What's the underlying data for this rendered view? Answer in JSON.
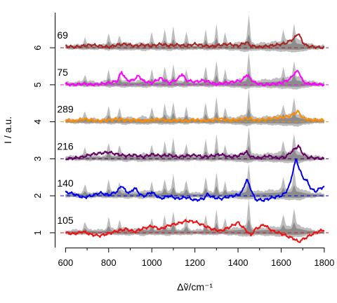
{
  "chart_data": {
    "type": "line",
    "xlabel": "Δṽ/cm⁻¹",
    "ylabel": "I / a.u.",
    "xlim": [
      550,
      1820
    ],
    "ylim": [
      0.6,
      6.95
    ],
    "x_ticks": [
      600,
      800,
      1000,
      1200,
      1400,
      1600,
      1800
    ],
    "x_minor_ticks": [
      700,
      900,
      1100,
      1300,
      1500,
      1700
    ],
    "y_ticks": [
      1,
      2,
      3,
      4,
      5,
      6
    ],
    "x_range": [
      600,
      1800
    ],
    "grid": false,
    "legend": "none",
    "reference_color": "#999999",
    "series": [
      {
        "label": "105",
        "offset": 1,
        "color": "#ee1111",
        "points": [
          [
            600,
            1.0
          ],
          [
            640,
            0.97
          ],
          [
            680,
            1.03
          ],
          [
            720,
            0.95
          ],
          [
            760,
            0.92
          ],
          [
            800,
            0.98
          ],
          [
            840,
            1.05
          ],
          [
            880,
            1.1
          ],
          [
            920,
            1.03
          ],
          [
            960,
            1.12
          ],
          [
            1000,
            1.18
          ],
          [
            1040,
            1.1
          ],
          [
            1080,
            1.2
          ],
          [
            1120,
            1.25
          ],
          [
            1160,
            1.32
          ],
          [
            1200,
            1.3
          ],
          [
            1240,
            1.2
          ],
          [
            1280,
            1.1
          ],
          [
            1320,
            1.05
          ],
          [
            1360,
            1.15
          ],
          [
            1400,
            1.28
          ],
          [
            1440,
            1.05
          ],
          [
            1460,
            0.93
          ],
          [
            1480,
            1.1
          ],
          [
            1520,
            1.22
          ],
          [
            1560,
            1.05
          ],
          [
            1600,
            0.98
          ],
          [
            1640,
            0.88
          ],
          [
            1660,
            0.84
          ],
          [
            1680,
            0.75
          ],
          [
            1700,
            0.82
          ],
          [
            1740,
            0.95
          ],
          [
            1780,
            1.05
          ],
          [
            1800,
            1.08
          ]
        ]
      },
      {
        "label": "140",
        "offset": 2,
        "color": "#0000ee",
        "points": [
          [
            600,
            2.1
          ],
          [
            640,
            2.05
          ],
          [
            680,
            1.95
          ],
          [
            720,
            2.0
          ],
          [
            760,
            2.08
          ],
          [
            800,
            2.02
          ],
          [
            840,
            2.12
          ],
          [
            860,
            2.28
          ],
          [
            880,
            2.12
          ],
          [
            900,
            2.08
          ],
          [
            920,
            2.22
          ],
          [
            940,
            2.08
          ],
          [
            960,
            1.98
          ],
          [
            1000,
            2.1
          ],
          [
            1040,
            1.92
          ],
          [
            1080,
            2.0
          ],
          [
            1120,
            1.92
          ],
          [
            1160,
            1.96
          ],
          [
            1200,
            1.88
          ],
          [
            1240,
            1.92
          ],
          [
            1260,
            2.05
          ],
          [
            1280,
            1.96
          ],
          [
            1320,
            1.92
          ],
          [
            1360,
            1.98
          ],
          [
            1400,
            2.02
          ],
          [
            1420,
            2.12
          ],
          [
            1440,
            2.45
          ],
          [
            1460,
            2.18
          ],
          [
            1480,
            1.9
          ],
          [
            1520,
            1.88
          ],
          [
            1560,
            1.95
          ],
          [
            1600,
            2.0
          ],
          [
            1620,
            2.08
          ],
          [
            1640,
            2.3
          ],
          [
            1660,
            2.8
          ],
          [
            1670,
            3.0
          ],
          [
            1680,
            2.8
          ],
          [
            1700,
            2.5
          ],
          [
            1720,
            2.4
          ],
          [
            1740,
            2.18
          ],
          [
            1760,
            2.12
          ],
          [
            1780,
            2.2
          ],
          [
            1800,
            2.25
          ]
        ]
      },
      {
        "label": "216",
        "offset": 3,
        "color": "#660066",
        "points": [
          [
            600,
            3.0
          ],
          [
            640,
            3.02
          ],
          [
            680,
            3.05
          ],
          [
            720,
            3.12
          ],
          [
            760,
            3.15
          ],
          [
            800,
            3.18
          ],
          [
            840,
            3.12
          ],
          [
            880,
            3.08
          ],
          [
            920,
            3.1
          ],
          [
            960,
            3.05
          ],
          [
            1000,
            3.12
          ],
          [
            1040,
            3.08
          ],
          [
            1080,
            3.1
          ],
          [
            1120,
            3.05
          ],
          [
            1160,
            3.08
          ],
          [
            1200,
            3.1
          ],
          [
            1240,
            3.05
          ],
          [
            1280,
            3.08
          ],
          [
            1320,
            3.12
          ],
          [
            1360,
            3.05
          ],
          [
            1400,
            3.08
          ],
          [
            1440,
            3.18
          ],
          [
            1460,
            3.05
          ],
          [
            1500,
            3.02
          ],
          [
            1540,
            3.08
          ],
          [
            1580,
            3.02
          ],
          [
            1620,
            3.05
          ],
          [
            1660,
            3.25
          ],
          [
            1680,
            3.35
          ],
          [
            1700,
            3.15
          ],
          [
            1720,
            3.05
          ],
          [
            1760,
            3.02
          ],
          [
            1800,
            3.0
          ]
        ]
      },
      {
        "label": "289",
        "offset": 4,
        "color": "#ff8c00",
        "points": [
          [
            600,
            4.05
          ],
          [
            640,
            4.02
          ],
          [
            680,
            4.08
          ],
          [
            720,
            4.05
          ],
          [
            760,
            4.02
          ],
          [
            800,
            4.05
          ],
          [
            840,
            4.08
          ],
          [
            880,
            4.04
          ],
          [
            920,
            4.06
          ],
          [
            960,
            4.02
          ],
          [
            1000,
            4.05
          ],
          [
            1040,
            4.07
          ],
          [
            1080,
            4.03
          ],
          [
            1120,
            4.05
          ],
          [
            1160,
            4.02
          ],
          [
            1200,
            4.06
          ],
          [
            1240,
            4.03
          ],
          [
            1280,
            4.05
          ],
          [
            1320,
            4.08
          ],
          [
            1360,
            4.04
          ],
          [
            1400,
            4.06
          ],
          [
            1440,
            4.1
          ],
          [
            1480,
            4.05
          ],
          [
            1520,
            4.06
          ],
          [
            1560,
            4.1
          ],
          [
            1600,
            4.12
          ],
          [
            1640,
            4.15
          ],
          [
            1660,
            4.22
          ],
          [
            1680,
            4.28
          ],
          [
            1700,
            4.1
          ],
          [
            1740,
            4.05
          ],
          [
            1800,
            4.05
          ]
        ]
      },
      {
        "label": "75",
        "offset": 5,
        "color": "#ff00ff",
        "points": [
          [
            600,
            5.02
          ],
          [
            640,
            5.0
          ],
          [
            680,
            5.03
          ],
          [
            720,
            5.0
          ],
          [
            760,
            5.02
          ],
          [
            800,
            5.05
          ],
          [
            840,
            5.1
          ],
          [
            860,
            5.35
          ],
          [
            880,
            5.15
          ],
          [
            900,
            5.1
          ],
          [
            920,
            5.15
          ],
          [
            940,
            5.25
          ],
          [
            960,
            5.1
          ],
          [
            1000,
            5.05
          ],
          [
            1040,
            5.18
          ],
          [
            1080,
            5.05
          ],
          [
            1120,
            5.15
          ],
          [
            1140,
            5.3
          ],
          [
            1160,
            5.12
          ],
          [
            1200,
            5.08
          ],
          [
            1240,
            5.12
          ],
          [
            1280,
            5.05
          ],
          [
            1300,
            5.02
          ],
          [
            1340,
            5.05
          ],
          [
            1380,
            5.08
          ],
          [
            1420,
            5.12
          ],
          [
            1440,
            5.28
          ],
          [
            1460,
            5.15
          ],
          [
            1480,
            5.05
          ],
          [
            1520,
            5.0
          ],
          [
            1560,
            5.02
          ],
          [
            1600,
            5.05
          ],
          [
            1640,
            5.15
          ],
          [
            1660,
            5.3
          ],
          [
            1680,
            5.38
          ],
          [
            1700,
            5.1
          ],
          [
            1720,
            5.03
          ],
          [
            1760,
            5.02
          ],
          [
            1800,
            5.0
          ]
        ]
      },
      {
        "label": "69",
        "offset": 6,
        "color": "#aa2222",
        "points": [
          [
            600,
            6.05
          ],
          [
            640,
            6.02
          ],
          [
            680,
            6.05
          ],
          [
            720,
            6.08
          ],
          [
            760,
            6.05
          ],
          [
            800,
            6.02
          ],
          [
            840,
            6.08
          ],
          [
            880,
            6.1
          ],
          [
            920,
            6.05
          ],
          [
            960,
            6.08
          ],
          [
            1000,
            6.05
          ],
          [
            1040,
            6.1
          ],
          [
            1080,
            6.06
          ],
          [
            1120,
            6.08
          ],
          [
            1160,
            6.05
          ],
          [
            1200,
            6.1
          ],
          [
            1240,
            6.06
          ],
          [
            1280,
            6.04
          ],
          [
            1320,
            6.08
          ],
          [
            1360,
            6.1
          ],
          [
            1400,
            6.05
          ],
          [
            1440,
            6.15
          ],
          [
            1460,
            6.05
          ],
          [
            1500,
            6.02
          ],
          [
            1540,
            6.05
          ],
          [
            1580,
            6.08
          ],
          [
            1620,
            6.12
          ],
          [
            1660,
            6.25
          ],
          [
            1680,
            6.4
          ],
          [
            1700,
            6.15
          ],
          [
            1720,
            6.05
          ],
          [
            1760,
            6.02
          ],
          [
            1800,
            6.0
          ]
        ]
      }
    ],
    "reference_band": {
      "sigma_wide": [
        [
          600,
          0.07
        ],
        [
          640,
          0.08
        ],
        [
          680,
          0.09
        ],
        [
          720,
          0.1
        ],
        [
          760,
          0.08
        ],
        [
          800,
          0.12
        ],
        [
          840,
          0.1
        ],
        [
          880,
          0.14
        ],
        [
          920,
          0.1
        ],
        [
          960,
          0.15
        ],
        [
          1000,
          0.1
        ],
        [
          1040,
          0.12
        ],
        [
          1080,
          0.14
        ],
        [
          1120,
          0.1
        ],
        [
          1160,
          0.12
        ],
        [
          1200,
          0.08
        ],
        [
          1240,
          0.1
        ],
        [
          1280,
          0.12
        ],
        [
          1320,
          0.08
        ],
        [
          1360,
          0.12
        ],
        [
          1400,
          0.14
        ],
        [
          1440,
          0.2
        ],
        [
          1480,
          0.12
        ],
        [
          1520,
          0.14
        ],
        [
          1560,
          0.16
        ],
        [
          1600,
          0.18
        ],
        [
          1640,
          0.2
        ],
        [
          1680,
          0.22
        ],
        [
          1720,
          0.12
        ],
        [
          1760,
          0.08
        ],
        [
          1800,
          0.06
        ]
      ],
      "spikes": [
        [
          690,
          0.2
        ],
        [
          800,
          0.3
        ],
        [
          850,
          0.25
        ],
        [
          1000,
          0.3
        ],
        [
          1060,
          0.35
        ],
        [
          1100,
          0.45
        ],
        [
          1160,
          0.3
        ],
        [
          1250,
          0.4
        ],
        [
          1300,
          0.55
        ],
        [
          1340,
          0.3
        ],
        [
          1450,
          0.7
        ],
        [
          1610,
          0.3
        ],
        [
          1660,
          0.45
        ]
      ]
    }
  }
}
